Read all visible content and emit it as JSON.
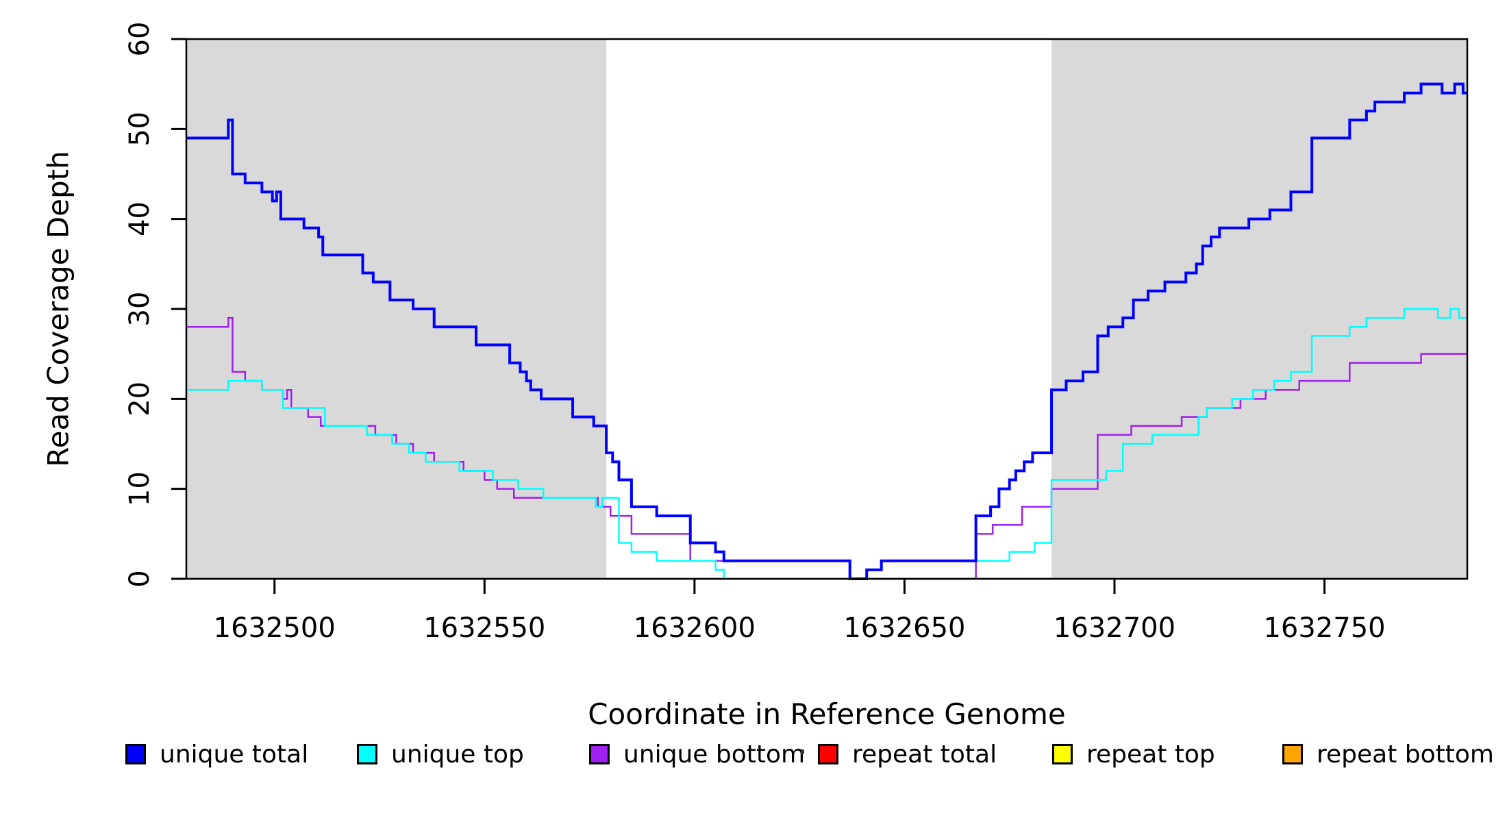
{
  "chart_data": {
    "type": "line",
    "subtype": "step-after",
    "title": "",
    "xlabel": "Coordinate in Reference Genome",
    "ylabel": "Read Coverage Depth",
    "xlim": [
      1632479,
      1632784
    ],
    "ylim": [
      0,
      60
    ],
    "grid": false,
    "x_ticks": [
      {
        "value": 1632500,
        "label": "1632500"
      },
      {
        "value": 1632550,
        "label": "1632550"
      },
      {
        "value": 1632600,
        "label": "1632600"
      },
      {
        "value": 1632650,
        "label": "1632650"
      },
      {
        "value": 1632700,
        "label": "1632700"
      },
      {
        "value": 1632750,
        "label": "1632750"
      }
    ],
    "y_ticks": [
      {
        "value": 0,
        "label": "0"
      },
      {
        "value": 10,
        "label": "10"
      },
      {
        "value": 20,
        "label": "20"
      },
      {
        "value": 30,
        "label": "30"
      },
      {
        "value": 40,
        "label": "40"
      },
      {
        "value": 50,
        "label": "50"
      },
      {
        "value": 60,
        "label": "60"
      }
    ],
    "shaded_regions": [
      {
        "x0": 1632479,
        "x1": 1632579,
        "color": "#D9D9D9"
      },
      {
        "x0": 1632685,
        "x1": 1632784,
        "color": "#D9D9D9"
      }
    ],
    "series": [
      {
        "name": "repeat total",
        "color": "#FF0000",
        "width": 2.5,
        "steps": [
          [
            1632479,
            0
          ]
        ]
      },
      {
        "name": "repeat top",
        "color": "#FFFF00",
        "width": 2.5,
        "steps": [
          [
            1632479,
            0
          ]
        ]
      },
      {
        "name": "repeat bottom",
        "color": "#FFA500",
        "width": 3,
        "steps": [
          [
            1632479,
            0
          ]
        ]
      },
      {
        "name": "unique bottom",
        "color": "#A020F0",
        "width": 2.5,
        "steps": [
          [
            1632479,
            28
          ],
          [
            1632489,
            29
          ],
          [
            1632490,
            23
          ],
          [
            1632493,
            22
          ],
          [
            1632497,
            21
          ],
          [
            1632502,
            20
          ],
          [
            1632503,
            21
          ],
          [
            1632504,
            19
          ],
          [
            1632508,
            18
          ],
          [
            1632511,
            17
          ],
          [
            1632524,
            16
          ],
          [
            1632529,
            15
          ],
          [
            1632533,
            14
          ],
          [
            1632538,
            13
          ],
          [
            1632545,
            12
          ],
          [
            1632550,
            11
          ],
          [
            1632553,
            10
          ],
          [
            1632557,
            9
          ],
          [
            1632577,
            8
          ],
          [
            1632580,
            7
          ],
          [
            1632585,
            5
          ],
          [
            1632599,
            2
          ],
          [
            1632637,
            0
          ],
          [
            1632667,
            5
          ],
          [
            1632671,
            6
          ],
          [
            1632678,
            8
          ],
          [
            1632685,
            10
          ],
          [
            1632696,
            16
          ],
          [
            1632704,
            17
          ],
          [
            1632716,
            18
          ],
          [
            1632722,
            19
          ],
          [
            1632730,
            20
          ],
          [
            1632736,
            21
          ],
          [
            1632744,
            22
          ],
          [
            1632756,
            24
          ],
          [
            1632773,
            25
          ]
        ]
      },
      {
        "name": "unique top",
        "color": "#00FFFF",
        "width": 2.5,
        "steps": [
          [
            1632479,
            21
          ],
          [
            1632489,
            22
          ],
          [
            1632497,
            21
          ],
          [
            1632502,
            19
          ],
          [
            1632512,
            17
          ],
          [
            1632522,
            16
          ],
          [
            1632528,
            15
          ],
          [
            1632532,
            14
          ],
          [
            1632536,
            13
          ],
          [
            1632544,
            12
          ],
          [
            1632552,
            11
          ],
          [
            1632558,
            10
          ],
          [
            1632564,
            9
          ],
          [
            1632576.5,
            8
          ],
          [
            1632578,
            9
          ],
          [
            1632582,
            4
          ],
          [
            1632585,
            3
          ],
          [
            1632591,
            2
          ],
          [
            1632605,
            1
          ],
          [
            1632607,
            0
          ],
          [
            1632641,
            1
          ],
          [
            1632644.5,
            2
          ],
          [
            1632675,
            3
          ],
          [
            1632681,
            4
          ],
          [
            1632685,
            11
          ],
          [
            1632698,
            12
          ],
          [
            1632702,
            15
          ],
          [
            1632709,
            16
          ],
          [
            1632720,
            18
          ],
          [
            1632722,
            19
          ],
          [
            1632728,
            20
          ],
          [
            1632733,
            21
          ],
          [
            1632738,
            22
          ],
          [
            1632742,
            23
          ],
          [
            1632747,
            27
          ],
          [
            1632756,
            28
          ],
          [
            1632760,
            29
          ],
          [
            1632769,
            30
          ],
          [
            1632777,
            29
          ],
          [
            1632780,
            30
          ],
          [
            1632782,
            29
          ]
        ]
      },
      {
        "name": "unique total",
        "color": "#0000FF",
        "width": 4,
        "steps": [
          [
            1632479,
            49
          ],
          [
            1632489,
            51
          ],
          [
            1632490,
            45
          ],
          [
            1632493,
            44
          ],
          [
            1632497,
            43
          ],
          [
            1632499.5,
            42
          ],
          [
            1632500.5,
            43
          ],
          [
            1632501.5,
            40
          ],
          [
            1632507,
            39
          ],
          [
            1632510.5,
            38
          ],
          [
            1632511.5,
            36
          ],
          [
            1632521,
            34
          ],
          [
            1632523.5,
            33
          ],
          [
            1632527.5,
            31
          ],
          [
            1632533,
            30
          ],
          [
            1632538,
            28
          ],
          [
            1632548,
            26
          ],
          [
            1632556,
            24
          ],
          [
            1632558.5,
            23
          ],
          [
            1632560,
            22
          ],
          [
            1632561,
            21
          ],
          [
            1632563.5,
            20
          ],
          [
            1632571,
            18
          ],
          [
            1632576,
            17
          ],
          [
            1632579,
            14
          ],
          [
            1632580.5,
            13
          ],
          [
            1632582,
            11
          ],
          [
            1632585,
            8
          ],
          [
            1632591,
            7
          ],
          [
            1632599,
            4
          ],
          [
            1632605,
            3
          ],
          [
            1632607,
            2
          ],
          [
            1632637,
            0
          ],
          [
            1632641,
            1
          ],
          [
            1632644.5,
            2
          ],
          [
            1632667,
            7
          ],
          [
            1632670.5,
            8
          ],
          [
            1632672.5,
            10
          ],
          [
            1632675,
            11
          ],
          [
            1632676.5,
            12
          ],
          [
            1632678.5,
            13
          ],
          [
            1632680.5,
            14
          ],
          [
            1632685,
            21
          ],
          [
            1632688.5,
            22
          ],
          [
            1632692.5,
            23
          ],
          [
            1632696,
            27
          ],
          [
            1632698.5,
            28
          ],
          [
            1632702,
            29
          ],
          [
            1632704.5,
            31
          ],
          [
            1632708,
            32
          ],
          [
            1632712,
            33
          ],
          [
            1632717,
            34
          ],
          [
            1632719.5,
            35
          ],
          [
            1632721,
            37
          ],
          [
            1632723,
            38
          ],
          [
            1632725,
            39
          ],
          [
            1632732,
            40
          ],
          [
            1632737,
            41
          ],
          [
            1632742,
            43
          ],
          [
            1632747,
            49
          ],
          [
            1632756,
            51
          ],
          [
            1632760,
            52
          ],
          [
            1632762,
            53
          ],
          [
            1632769,
            54
          ],
          [
            1632773,
            55
          ],
          [
            1632778,
            54
          ],
          [
            1632781,
            55
          ],
          [
            1632783,
            54
          ]
        ]
      }
    ],
    "legend_position": "bottom",
    "legend": [
      {
        "label": "unique total",
        "color": "#0000FF"
      },
      {
        "label": "unique top",
        "color": "#00FFFF"
      },
      {
        "label": "unique bottom",
        "color": "#A020F0"
      },
      {
        "label": "repeat total",
        "color": "#FF0000"
      },
      {
        "label": "repeat top",
        "color": "#FFFF00"
      },
      {
        "label": "repeat bottom",
        "color": "#FFA500"
      }
    ]
  }
}
